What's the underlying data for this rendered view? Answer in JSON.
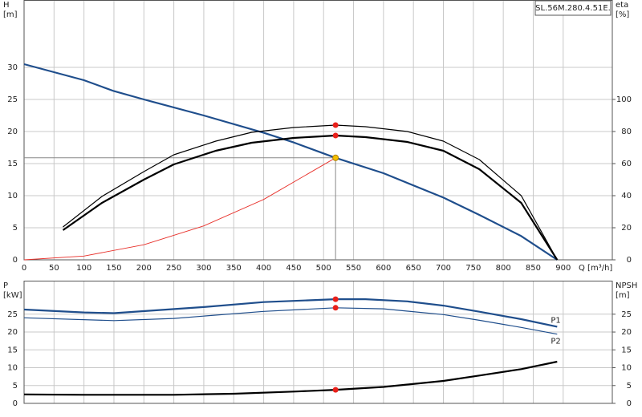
{
  "chart_data": [
    {
      "type": "line",
      "ylabel": [
        "H",
        "[m]"
      ],
      "y2label": [
        "eta",
        "[%]"
      ],
      "xlabel": "Q [m³/h]",
      "annotations": [
        "SL.56M.280.4.51E."
      ],
      "xlim": [
        0,
        982
      ],
      "xticks": [
        0,
        50,
        100,
        150,
        200,
        250,
        300,
        350,
        400,
        450,
        500,
        550,
        600,
        650,
        700,
        750,
        800,
        850,
        900
      ],
      "ylim": [
        0,
        40.5
      ],
      "yticks": [
        0,
        5,
        10,
        15,
        20,
        25,
        30
      ],
      "y2lim": [
        0,
        162
      ],
      "y2ticks": [
        0,
        20,
        40,
        60,
        80,
        100
      ],
      "grid": true,
      "guides": true,
      "series": [
        {
          "color": "#1f4e8c",
          "width": 2.2,
          "axis": "y",
          "x": [
            0,
            100,
            150,
            200,
            300,
            400,
            450,
            520,
            600,
            700,
            760,
            830,
            890
          ],
          "values": [
            30.5,
            28,
            26.3,
            25,
            22.5,
            19.8,
            18.3,
            15.9,
            13.5,
            9.7,
            7,
            3.7,
            0
          ]
        },
        {
          "color": "#000000",
          "width": 1.2,
          "axis": "y2",
          "x": [
            65,
            130,
            200,
            250,
            320,
            380,
            450,
            520,
            570,
            640,
            700,
            760,
            830,
            890
          ],
          "values": [
            20.5,
            39.5,
            55,
            65.5,
            74,
            79.5,
            82.5,
            84,
            83,
            80,
            74,
            62.5,
            40,
            0
          ]
        },
        {
          "color": "#000000",
          "width": 2.2,
          "axis": "y2",
          "x": [
            65,
            130,
            200,
            250,
            320,
            380,
            450,
            520,
            570,
            640,
            700,
            760,
            830,
            890
          ],
          "values": [
            18.5,
            35.5,
            50,
            59.5,
            68,
            73,
            76,
            77.5,
            76.5,
            73.5,
            68,
            56.5,
            35.5,
            0
          ]
        },
        {
          "color": "#e8302a",
          "width": 0.9,
          "axis": "y",
          "x": [
            0,
            100,
            200,
            300,
            400,
            520
          ],
          "values": [
            0,
            0.59,
            2.35,
            5.29,
            9.41,
            15.9
          ]
        }
      ],
      "markers": [
        {
          "x": 520,
          "y": 15.9,
          "axis": "y",
          "color": "#f5c000"
        },
        {
          "x": 520,
          "y": 84,
          "axis": "y2",
          "color": "#e8201a"
        },
        {
          "x": 520,
          "y": 77.5,
          "axis": "y2",
          "color": "#e8201a"
        }
      ]
    },
    {
      "type": "line",
      "ylabel": [
        "P",
        "[kW]"
      ],
      "y2label": [
        "NPSH",
        "[m]"
      ],
      "xlim": [
        0,
        982
      ],
      "xticks": [
        0,
        50,
        100,
        150,
        200,
        250,
        300,
        350,
        400,
        450,
        500,
        550,
        600,
        650,
        700,
        750,
        800,
        850,
        900
      ],
      "ylim": [
        0,
        34.4
      ],
      "yticks": [
        0,
        5,
        10,
        15,
        20,
        25
      ],
      "y2lim": [
        0,
        34.4
      ],
      "y2ticks": [
        0,
        5,
        10,
        15,
        20,
        25
      ],
      "grid": true,
      "series": [
        {
          "name": "P1",
          "color": "#1f4e8c",
          "width": 2.2,
          "axis": "y",
          "x": [
            0,
            100,
            150,
            300,
            400,
            520,
            570,
            640,
            700,
            760,
            830,
            890
          ],
          "values": [
            26.3,
            25.5,
            25.3,
            27,
            28.4,
            29.2,
            29.2,
            28.6,
            27.4,
            25.7,
            23.6,
            21.5
          ]
        },
        {
          "name": "P2",
          "color": "#1f4e8c",
          "width": 1.2,
          "axis": "y",
          "x": [
            0,
            150,
            250,
            400,
            520,
            600,
            700,
            760,
            830,
            890
          ],
          "values": [
            24,
            23.2,
            23.8,
            25.8,
            26.8,
            26.5,
            24.9,
            23.3,
            21.3,
            19.4
          ]
        },
        {
          "color": "#000000",
          "width": 2.2,
          "axis": "y2",
          "x": [
            0,
            100,
            250,
            350,
            450,
            520,
            600,
            700,
            760,
            830,
            890
          ],
          "values": [
            2.5,
            2.4,
            2.4,
            2.7,
            3.3,
            3.8,
            4.6,
            6.3,
            7.8,
            9.6,
            11.7
          ]
        }
      ],
      "markers": [
        {
          "x": 520,
          "y": 29.2,
          "axis": "y",
          "color": "#e8201a"
        },
        {
          "x": 520,
          "y": 26.8,
          "axis": "y",
          "color": "#e8201a"
        },
        {
          "x": 520,
          "y": 3.8,
          "axis": "y2",
          "color": "#e8201a"
        }
      ]
    }
  ]
}
